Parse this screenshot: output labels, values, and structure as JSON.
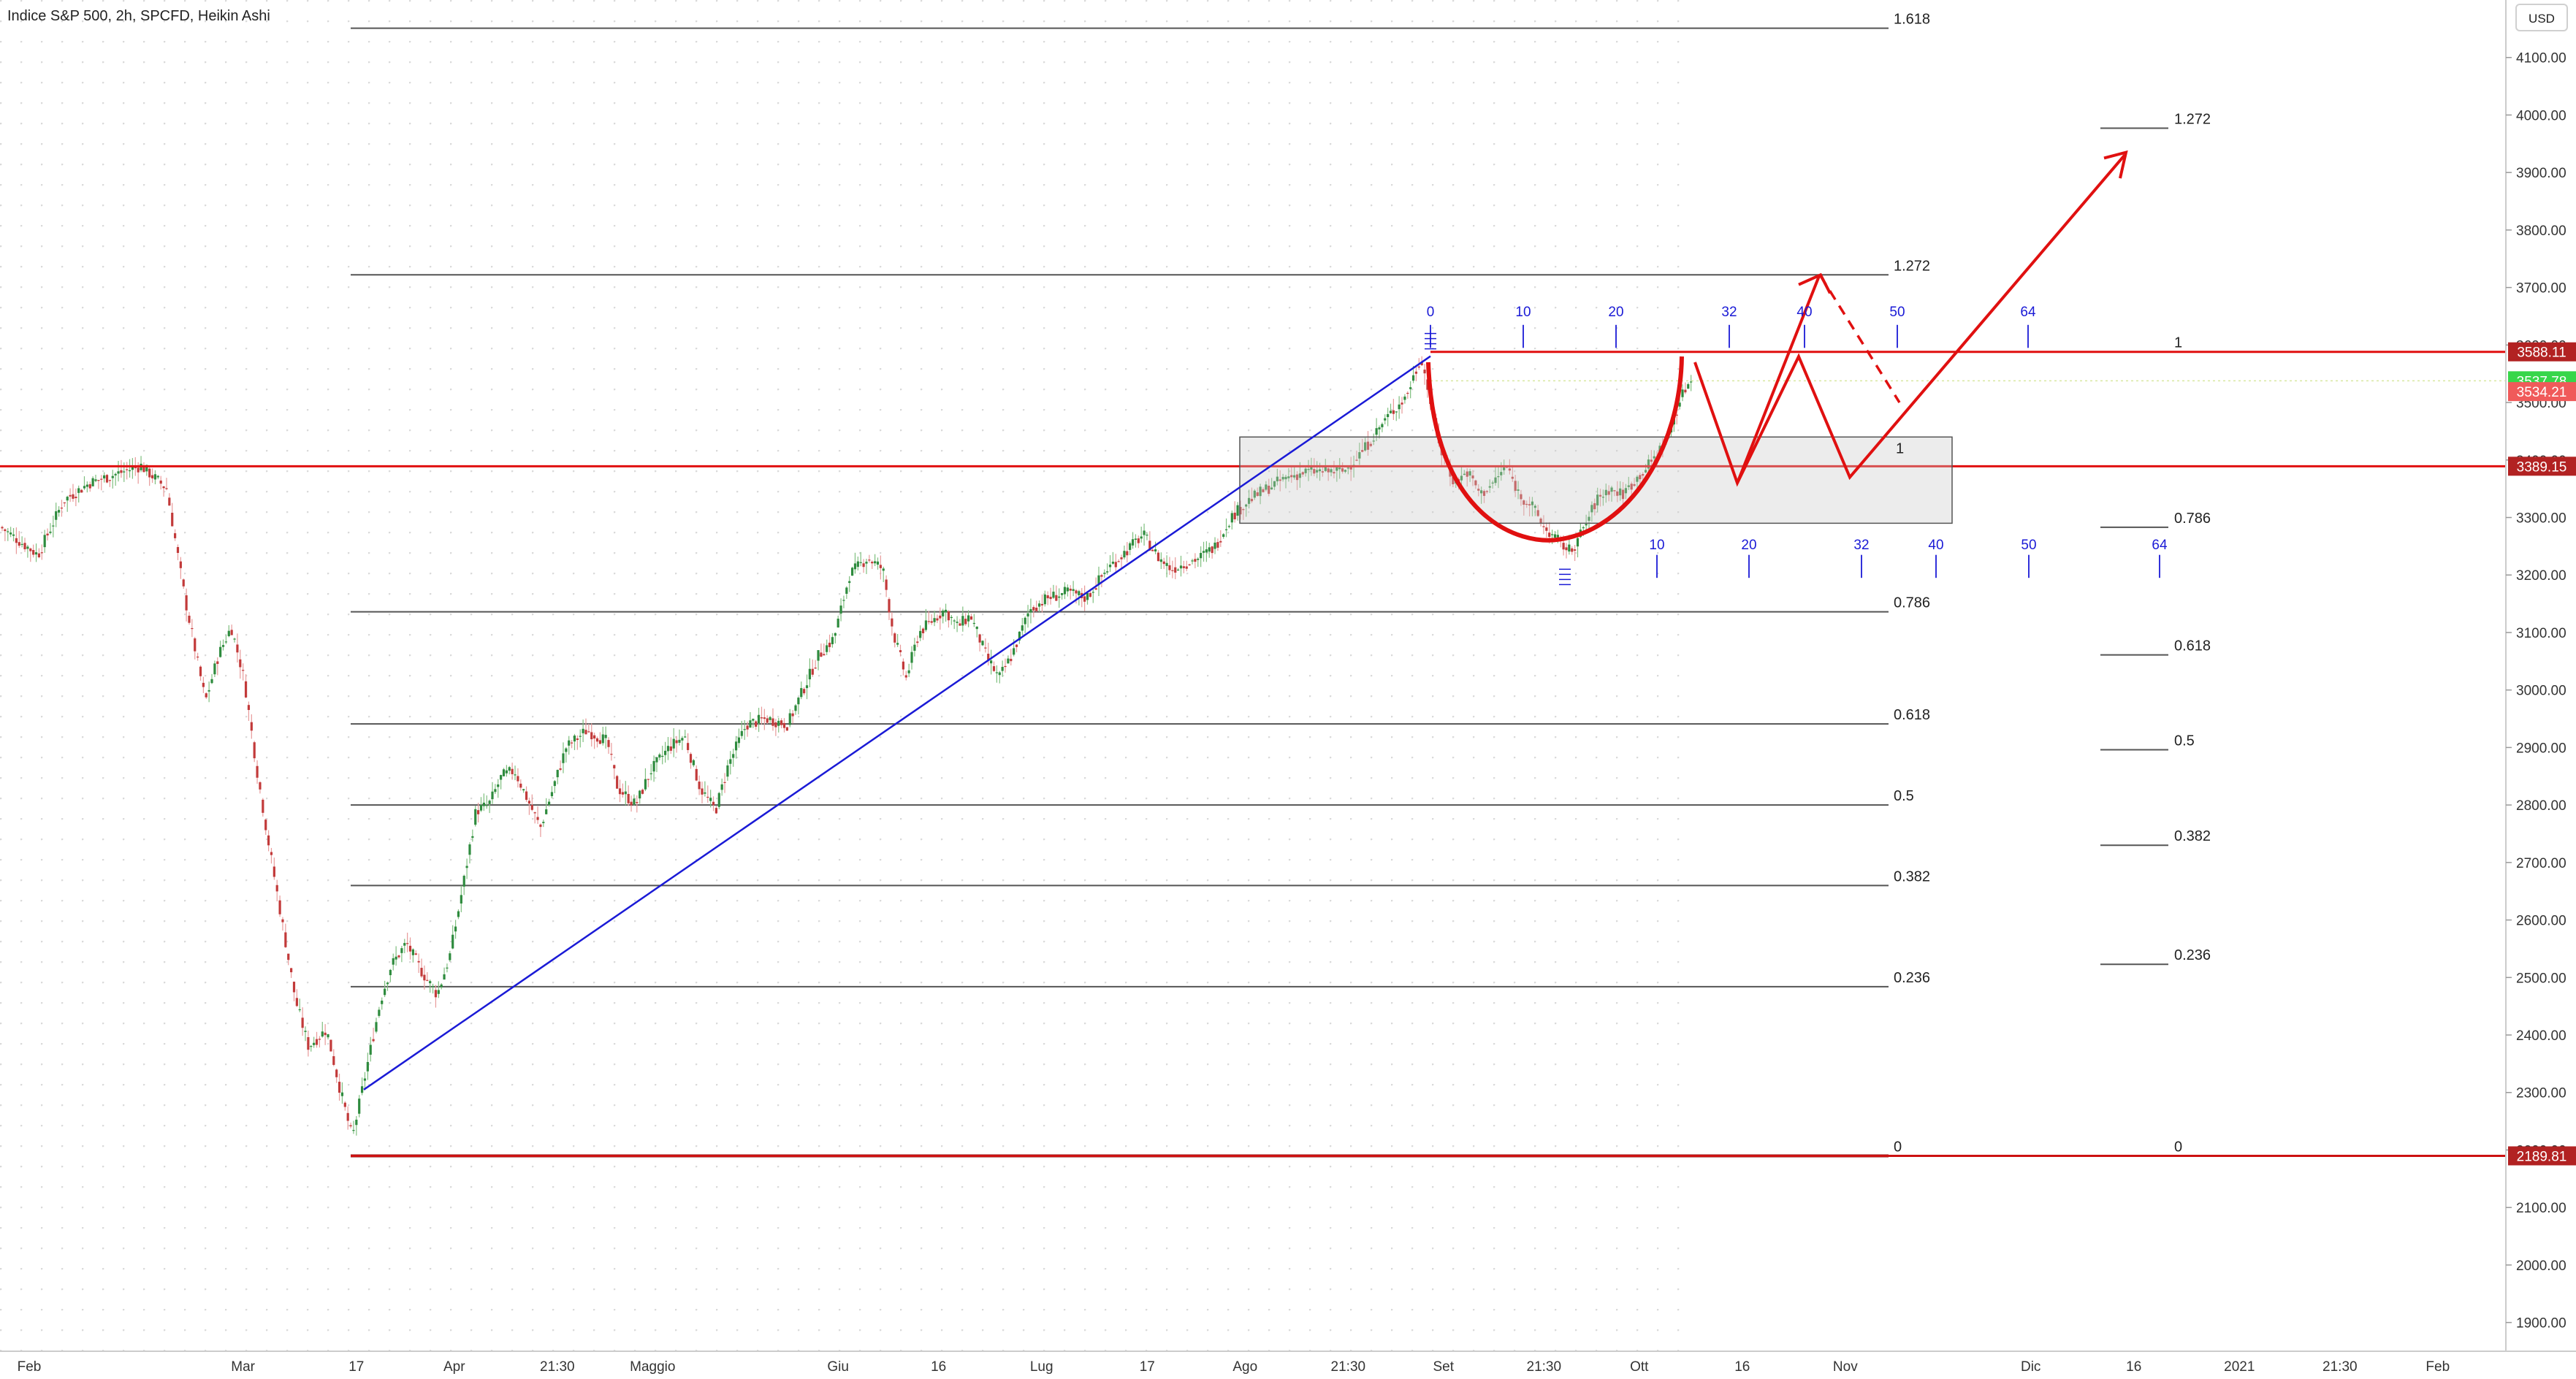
{
  "header": {
    "title": "Indice S&P 500, 2h, SPCFD, Heikin Ashi",
    "currency": "USD"
  },
  "colors": {
    "up": "#26a69a",
    "down": "#ef5350",
    "red": "#e01010",
    "blue": "#1a1ad6",
    "fib": "#555555",
    "price_green": "#37d64a",
    "price_red": "#f05a5a",
    "label_darkred": "#b22222"
  },
  "chart_data": {
    "type": "candlestick",
    "title": "Indice S&P 500, 2h, SPCFD, Heikin Ashi",
    "y_axis": {
      "ylim": [
        1850,
        4200
      ],
      "ticks": [
        4100,
        4000,
        3900,
        3800,
        3700,
        3600,
        3500,
        3400,
        3300,
        3200,
        3100,
        3000,
        2900,
        2800,
        2700,
        2600,
        2500,
        2400,
        2300,
        2200,
        2100,
        2000,
        1900
      ],
      "tick_labels": [
        "4100.00",
        "4000.00",
        "3900.00",
        "3800.00",
        "3700.00",
        "3600.00",
        "3500.00",
        "3400.00",
        "3300.00",
        "3200.00",
        "3100.00",
        "3000.00",
        "2900.00",
        "2800.00",
        "2700.00",
        "2600.00",
        "2500.00",
        "2400.00",
        "2300.00",
        "2200.00",
        "2100.00",
        "2000.00",
        "1900.00"
      ]
    },
    "x_axis": {
      "ticks": [
        {
          "label": "Feb",
          "t": 0
        },
        {
          "label": "Mar",
          "t": 0.083
        },
        {
          "label": "17",
          "t": 0.127
        },
        {
          "label": "Apr",
          "t": 0.165
        },
        {
          "label": "21:30",
          "t": 0.205
        },
        {
          "label": "Maggio",
          "t": 0.242
        },
        {
          "label": "Giu",
          "t": 0.314
        },
        {
          "label": "16",
          "t": 0.353
        },
        {
          "label": "Lug",
          "t": 0.393
        },
        {
          "label": "17",
          "t": 0.434
        },
        {
          "label": "Ago",
          "t": 0.472
        },
        {
          "label": "21:30",
          "t": 0.512
        },
        {
          "label": "Set",
          "t": 0.549
        },
        {
          "label": "21:30",
          "t": 0.588
        },
        {
          "label": "Ott",
          "t": 0.625
        },
        {
          "label": "16",
          "t": 0.665
        },
        {
          "label": "Nov",
          "t": 0.705
        },
        {
          "label": "Dic",
          "t": 0.777
        },
        {
          "label": "16",
          "t": 0.817
        },
        {
          "label": "2021",
          "t": 0.858
        },
        {
          "label": "21:30",
          "t": 0.897
        },
        {
          "label": "Feb",
          "t": 0.935
        }
      ]
    },
    "price_path": [
      [
        0.0,
        3285
      ],
      [
        0.015,
        3235
      ],
      [
        0.025,
        3330
      ],
      [
        0.035,
        3360
      ],
      [
        0.045,
        3375
      ],
      [
        0.055,
        3390
      ],
      [
        0.065,
        3350
      ],
      [
        0.072,
        3160
      ],
      [
        0.08,
        2980
      ],
      [
        0.085,
        3060
      ],
      [
        0.09,
        3110
      ],
      [
        0.095,
        3020
      ],
      [
        0.1,
        2860
      ],
      [
        0.105,
        2720
      ],
      [
        0.11,
        2590
      ],
      [
        0.115,
        2460
      ],
      [
        0.12,
        2380
      ],
      [
        0.127,
        2410
      ],
      [
        0.132,
        2310
      ],
      [
        0.137,
        2220
      ],
      [
        0.142,
        2330
      ],
      [
        0.148,
        2460
      ],
      [
        0.152,
        2520
      ],
      [
        0.158,
        2560
      ],
      [
        0.164,
        2510
      ],
      [
        0.17,
        2470
      ],
      [
        0.175,
        2540
      ],
      [
        0.18,
        2660
      ],
      [
        0.185,
        2790
      ],
      [
        0.19,
        2800
      ],
      [
        0.195,
        2850
      ],
      [
        0.2,
        2860
      ],
      [
        0.206,
        2800
      ],
      [
        0.21,
        2760
      ],
      [
        0.215,
        2830
      ],
      [
        0.22,
        2900
      ],
      [
        0.228,
        2930
      ],
      [
        0.236,
        2910
      ],
      [
        0.24,
        2830
      ],
      [
        0.247,
        2800
      ],
      [
        0.253,
        2860
      ],
      [
        0.26,
        2900
      ],
      [
        0.266,
        2920
      ],
      [
        0.272,
        2830
      ],
      [
        0.278,
        2790
      ],
      [
        0.283,
        2870
      ],
      [
        0.29,
        2940
      ],
      [
        0.298,
        2950
      ],
      [
        0.306,
        2940
      ],
      [
        0.312,
        3000
      ],
      [
        0.318,
        3060
      ],
      [
        0.324,
        3090
      ],
      [
        0.33,
        3200
      ],
      [
        0.337,
        3230
      ],
      [
        0.343,
        3210
      ],
      [
        0.347,
        3100
      ],
      [
        0.352,
        3020
      ],
      [
        0.357,
        3100
      ],
      [
        0.362,
        3120
      ],
      [
        0.367,
        3140
      ],
      [
        0.372,
        3110
      ],
      [
        0.377,
        3130
      ],
      [
        0.383,
        3060
      ],
      [
        0.388,
        3020
      ],
      [
        0.393,
        3060
      ],
      [
        0.4,
        3140
      ],
      [
        0.407,
        3160
      ],
      [
        0.415,
        3170
      ],
      [
        0.422,
        3160
      ],
      [
        0.43,
        3210
      ],
      [
        0.437,
        3240
      ],
      [
        0.444,
        3270
      ],
      [
        0.45,
        3230
      ],
      [
        0.455,
        3210
      ],
      [
        0.46,
        3220
      ],
      [
        0.466,
        3230
      ],
      [
        0.472,
        3250
      ],
      [
        0.478,
        3300
      ],
      [
        0.485,
        3330
      ],
      [
        0.492,
        3350
      ],
      [
        0.5,
        3370
      ],
      [
        0.508,
        3380
      ],
      [
        0.515,
        3380
      ],
      [
        0.522,
        3380
      ],
      [
        0.53,
        3420
      ],
      [
        0.538,
        3470
      ],
      [
        0.546,
        3510
      ],
      [
        0.552,
        3580
      ],
      [
        0.556,
        3490
      ],
      [
        0.56,
        3410
      ],
      [
        0.565,
        3360
      ],
      [
        0.57,
        3380
      ],
      [
        0.575,
        3340
      ],
      [
        0.58,
        3360
      ],
      [
        0.585,
        3390
      ],
      [
        0.59,
        3340
      ],
      [
        0.595,
        3320
      ],
      [
        0.6,
        3280
      ],
      [
        0.605,
        3260
      ],
      [
        0.61,
        3240
      ],
      [
        0.615,
        3280
      ],
      [
        0.62,
        3330
      ],
      [
        0.625,
        3350
      ],
      [
        0.63,
        3340
      ],
      [
        0.636,
        3370
      ],
      [
        0.642,
        3400
      ],
      [
        0.648,
        3440
      ],
      [
        0.652,
        3500
      ],
      [
        0.656,
        3537.78
      ]
    ],
    "fibonacci_retracement": {
      "low": 2189.81,
      "high": 3588.11,
      "levels": [
        {
          "label": "1.618",
          "price": 4151
        },
        {
          "label": "1.272",
          "price": 3722
        },
        {
          "label": "0.786",
          "price": 3136
        },
        {
          "label": "0.618",
          "price": 2941
        },
        {
          "label": "0.5",
          "price": 2800
        },
        {
          "label": "0.382",
          "price": 2660
        },
        {
          "label": "0.236",
          "price": 2484
        },
        {
          "label": "0",
          "price": 2189.81
        }
      ]
    },
    "fibonacci_extension": {
      "levels": [
        {
          "label": "1.272",
          "price": 3977
        },
        {
          "label": "1",
          "price": 3588.11
        },
        {
          "label": "0.786",
          "price": 3283
        },
        {
          "label": "0.618",
          "price": 3061
        },
        {
          "label": "0.5",
          "price": 2896
        },
        {
          "label": "0.382",
          "price": 2730
        },
        {
          "label": "0.236",
          "price": 2523
        },
        {
          "label": "0",
          "price": 2189.81
        }
      ]
    },
    "fib_time_zones_top": [
      "0",
      "10",
      "20",
      "32",
      "40",
      "50",
      "64"
    ],
    "fib_time_zones_bottom": [
      "10",
      "20",
      "32",
      "40",
      "50",
      "64"
    ],
    "horizontal_levels": [
      {
        "price": 3588.11,
        "label": "3588.11"
      },
      {
        "price": 3389.15,
        "label": "3389.15"
      },
      {
        "price": 2189.81,
        "label": "2189.81"
      }
    ],
    "support_box_label": "1",
    "current_price": {
      "price": 3537.78,
      "label": "3537.78"
    },
    "secondary_price": {
      "price": 3534.21,
      "label": "3534.21"
    }
  }
}
